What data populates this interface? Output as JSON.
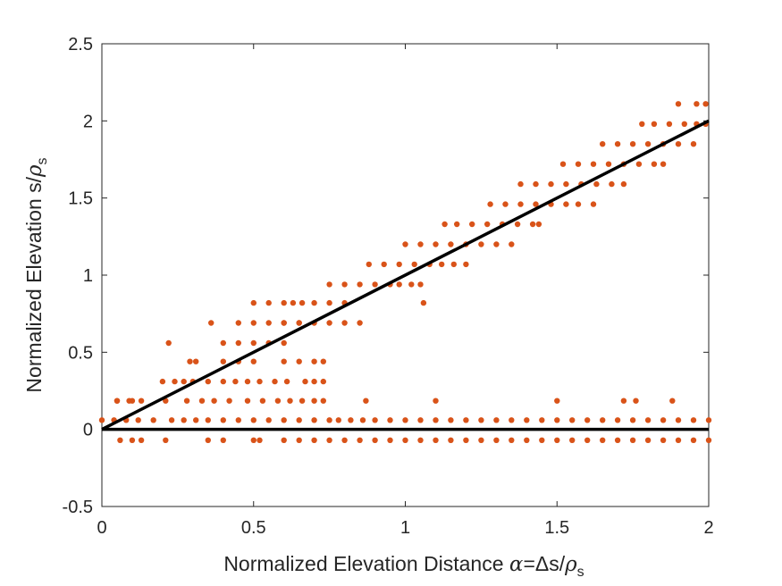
{
  "chart_data": {
    "type": "scatter",
    "title": "",
    "xlabel": {
      "prefix": "Normalized Elevation Distance ",
      "alpha": "α",
      "mid": "=Δs/",
      "rho": "ρ",
      "sub": "s"
    },
    "ylabel": {
      "prefix": "Normalized Elevation s/",
      "rho": "ρ",
      "sub": "s"
    },
    "xlim": [
      0,
      2
    ],
    "ylim": [
      -0.5,
      2.5
    ],
    "x_ticks": [
      0,
      0.5,
      1,
      1.5,
      2
    ],
    "x_tick_labels": [
      "0",
      "0.5",
      "1",
      "1.5",
      "2"
    ],
    "y_ticks": [
      -0.5,
      0,
      0.5,
      1,
      1.5,
      2,
      2.5
    ],
    "y_tick_labels": [
      "-0.5",
      "0",
      "0.5",
      "1",
      "1.5",
      "2",
      "2.5"
    ],
    "colors": {
      "points": "#D95319",
      "lines": "#000000",
      "axes": "#262626"
    },
    "lines": [
      {
        "name": "diagonal-reference",
        "x": [
          0,
          2
        ],
        "y": [
          0,
          2
        ]
      },
      {
        "name": "zero-reference",
        "x": [
          0,
          2
        ],
        "y": [
          0,
          0
        ]
      }
    ],
    "series": [
      {
        "name": "diagonal-rows",
        "points": [
          [
            0.05,
            0.185
          ],
          [
            0.1,
            0.185
          ],
          [
            0.13,
            0.185
          ],
          [
            0.22,
            0.56
          ],
          [
            0.2,
            0.31
          ],
          [
            0.24,
            0.31
          ],
          [
            0.27,
            0.31
          ],
          [
            0.29,
            0.44
          ],
          [
            0.31,
            0.44
          ],
          [
            0.36,
            0.69
          ],
          [
            0.45,
            0.69
          ],
          [
            0.5,
            0.69
          ],
          [
            0.55,
            0.69
          ],
          [
            0.6,
            0.69
          ],
          [
            0.65,
            0.69
          ],
          [
            0.4,
            0.56
          ],
          [
            0.45,
            0.56
          ],
          [
            0.5,
            0.56
          ],
          [
            0.55,
            0.56
          ],
          [
            0.6,
            0.56
          ],
          [
            0.4,
            0.44
          ],
          [
            0.45,
            0.44
          ],
          [
            0.5,
            0.44
          ],
          [
            0.6,
            0.44
          ],
          [
            0.65,
            0.44
          ],
          [
            0.7,
            0.44
          ],
          [
            0.73,
            0.44
          ],
          [
            0.5,
            0.82
          ],
          [
            0.55,
            0.82
          ],
          [
            0.6,
            0.82
          ],
          [
            0.63,
            0.82
          ],
          [
            0.66,
            0.82
          ],
          [
            0.7,
            0.82
          ],
          [
            0.75,
            0.82
          ],
          [
            0.8,
            0.82
          ],
          [
            0.6,
            0.69
          ],
          [
            0.65,
            0.69
          ],
          [
            0.7,
            0.69
          ],
          [
            0.75,
            0.69
          ],
          [
            0.8,
            0.69
          ],
          [
            0.85,
            0.69
          ],
          [
            0.75,
            0.94
          ],
          [
            0.8,
            0.94
          ],
          [
            0.85,
            0.94
          ],
          [
            0.9,
            0.94
          ],
          [
            0.95,
            0.94
          ],
          [
            0.98,
            0.94
          ],
          [
            1.02,
            0.94
          ],
          [
            1.06,
            0.82
          ],
          [
            1.05,
            0.94
          ],
          [
            0.88,
            1.07
          ],
          [
            0.93,
            1.07
          ],
          [
            0.98,
            1.07
          ],
          [
            1.03,
            1.07
          ],
          [
            1.08,
            1.07
          ],
          [
            1.12,
            1.07
          ],
          [
            1.16,
            1.07
          ],
          [
            1.2,
            1.07
          ],
          [
            1.0,
            1.2
          ],
          [
            1.05,
            1.2
          ],
          [
            1.1,
            1.2
          ],
          [
            1.15,
            1.2
          ],
          [
            1.2,
            1.2
          ],
          [
            1.25,
            1.2
          ],
          [
            1.3,
            1.2
          ],
          [
            1.35,
            1.2
          ],
          [
            1.13,
            1.33
          ],
          [
            1.17,
            1.33
          ],
          [
            1.22,
            1.33
          ],
          [
            1.27,
            1.33
          ],
          [
            1.32,
            1.33
          ],
          [
            1.37,
            1.33
          ],
          [
            1.42,
            1.33
          ],
          [
            1.44,
            1.33
          ],
          [
            1.28,
            1.46
          ],
          [
            1.33,
            1.46
          ],
          [
            1.38,
            1.46
          ],
          [
            1.43,
            1.46
          ],
          [
            1.48,
            1.46
          ],
          [
            1.53,
            1.46
          ],
          [
            1.57,
            1.46
          ],
          [
            1.62,
            1.46
          ],
          [
            1.38,
            1.59
          ],
          [
            1.43,
            1.59
          ],
          [
            1.48,
            1.59
          ],
          [
            1.53,
            1.59
          ],
          [
            1.58,
            1.59
          ],
          [
            1.63,
            1.59
          ],
          [
            1.68,
            1.59
          ],
          [
            1.72,
            1.59
          ],
          [
            1.52,
            1.72
          ],
          [
            1.57,
            1.72
          ],
          [
            1.62,
            1.72
          ],
          [
            1.67,
            1.72
          ],
          [
            1.72,
            1.72
          ],
          [
            1.77,
            1.72
          ],
          [
            1.82,
            1.72
          ],
          [
            1.85,
            1.72
          ],
          [
            1.65,
            1.85
          ],
          [
            1.7,
            1.85
          ],
          [
            1.75,
            1.85
          ],
          [
            1.8,
            1.85
          ],
          [
            1.85,
            1.85
          ],
          [
            1.9,
            1.85
          ],
          [
            1.95,
            1.85
          ],
          [
            1.78,
            1.98
          ],
          [
            1.82,
            1.98
          ],
          [
            1.87,
            1.98
          ],
          [
            1.92,
            1.98
          ],
          [
            1.96,
            1.98
          ],
          [
            1.99,
            1.98
          ],
          [
            1.9,
            2.11
          ],
          [
            1.96,
            2.11
          ],
          [
            1.99,
            2.11
          ]
        ]
      },
      {
        "name": "low-elevation-rows",
        "points": [
          [
            0.0,
            0.06
          ],
          [
            0.04,
            0.06
          ],
          [
            0.08,
            0.06
          ],
          [
            0.12,
            0.06
          ],
          [
            0.17,
            0.06
          ],
          [
            0.23,
            0.06
          ],
          [
            0.27,
            0.06
          ],
          [
            0.31,
            0.06
          ],
          [
            0.35,
            0.06
          ],
          [
            0.4,
            0.06
          ],
          [
            0.45,
            0.06
          ],
          [
            0.5,
            0.06
          ],
          [
            0.55,
            0.06
          ],
          [
            0.6,
            0.06
          ],
          [
            0.65,
            0.06
          ],
          [
            0.7,
            0.06
          ],
          [
            0.75,
            0.06
          ],
          [
            0.78,
            0.06
          ],
          [
            0.82,
            0.06
          ],
          [
            0.86,
            0.06
          ],
          [
            0.9,
            0.06
          ],
          [
            0.95,
            0.06
          ],
          [
            1.0,
            0.06
          ],
          [
            1.05,
            0.06
          ],
          [
            1.1,
            0.06
          ],
          [
            1.15,
            0.06
          ],
          [
            1.2,
            0.06
          ],
          [
            1.25,
            0.06
          ],
          [
            1.3,
            0.06
          ],
          [
            1.35,
            0.06
          ],
          [
            1.4,
            0.06
          ],
          [
            1.45,
            0.06
          ],
          [
            1.5,
            0.06
          ],
          [
            1.55,
            0.06
          ],
          [
            1.6,
            0.06
          ],
          [
            1.65,
            0.06
          ],
          [
            1.7,
            0.06
          ],
          [
            1.75,
            0.06
          ],
          [
            1.8,
            0.06
          ],
          [
            1.85,
            0.06
          ],
          [
            1.9,
            0.06
          ],
          [
            1.95,
            0.06
          ],
          [
            2.0,
            0.06
          ],
          [
            0.06,
            -0.07
          ],
          [
            0.1,
            -0.07
          ],
          [
            0.13,
            -0.07
          ],
          [
            0.21,
            -0.07
          ],
          [
            0.35,
            -0.07
          ],
          [
            0.4,
            -0.07
          ],
          [
            0.5,
            -0.07
          ],
          [
            0.52,
            -0.07
          ],
          [
            0.6,
            -0.07
          ],
          [
            0.65,
            -0.07
          ],
          [
            0.7,
            -0.07
          ],
          [
            0.75,
            -0.07
          ],
          [
            0.8,
            -0.07
          ],
          [
            0.85,
            -0.07
          ],
          [
            0.9,
            -0.07
          ],
          [
            0.95,
            -0.07
          ],
          [
            1.0,
            -0.07
          ],
          [
            1.05,
            -0.07
          ],
          [
            1.1,
            -0.07
          ],
          [
            1.15,
            -0.07
          ],
          [
            1.2,
            -0.07
          ],
          [
            1.25,
            -0.07
          ],
          [
            1.3,
            -0.07
          ],
          [
            1.35,
            -0.07
          ],
          [
            1.4,
            -0.07
          ],
          [
            1.45,
            -0.07
          ],
          [
            1.5,
            -0.07
          ],
          [
            1.55,
            -0.07
          ],
          [
            1.6,
            -0.07
          ],
          [
            1.65,
            -0.07
          ],
          [
            1.7,
            -0.07
          ],
          [
            1.75,
            -0.07
          ],
          [
            1.8,
            -0.07
          ],
          [
            1.85,
            -0.07
          ],
          [
            1.9,
            -0.07
          ],
          [
            1.95,
            -0.07
          ],
          [
            2.0,
            -0.07
          ],
          [
            0.05,
            0.185
          ],
          [
            0.09,
            0.185
          ],
          [
            0.21,
            0.185
          ],
          [
            0.28,
            0.185
          ],
          [
            0.33,
            0.185
          ],
          [
            0.37,
            0.185
          ],
          [
            0.42,
            0.185
          ],
          [
            0.48,
            0.185
          ],
          [
            0.53,
            0.185
          ],
          [
            0.58,
            0.185
          ],
          [
            0.62,
            0.185
          ],
          [
            0.66,
            0.185
          ],
          [
            0.7,
            0.185
          ],
          [
            0.73,
            0.185
          ],
          [
            0.87,
            0.185
          ],
          [
            1.1,
            0.185
          ],
          [
            1.5,
            0.185
          ],
          [
            1.72,
            0.185
          ],
          [
            1.76,
            0.185
          ],
          [
            1.88,
            0.185
          ],
          [
            0.3,
            0.31
          ],
          [
            0.35,
            0.31
          ],
          [
            0.4,
            0.31
          ],
          [
            0.44,
            0.31
          ],
          [
            0.48,
            0.31
          ],
          [
            0.52,
            0.31
          ],
          [
            0.57,
            0.31
          ],
          [
            0.61,
            0.31
          ],
          [
            0.67,
            0.31
          ],
          [
            0.7,
            0.31
          ],
          [
            0.73,
            0.31
          ]
        ]
      }
    ]
  }
}
